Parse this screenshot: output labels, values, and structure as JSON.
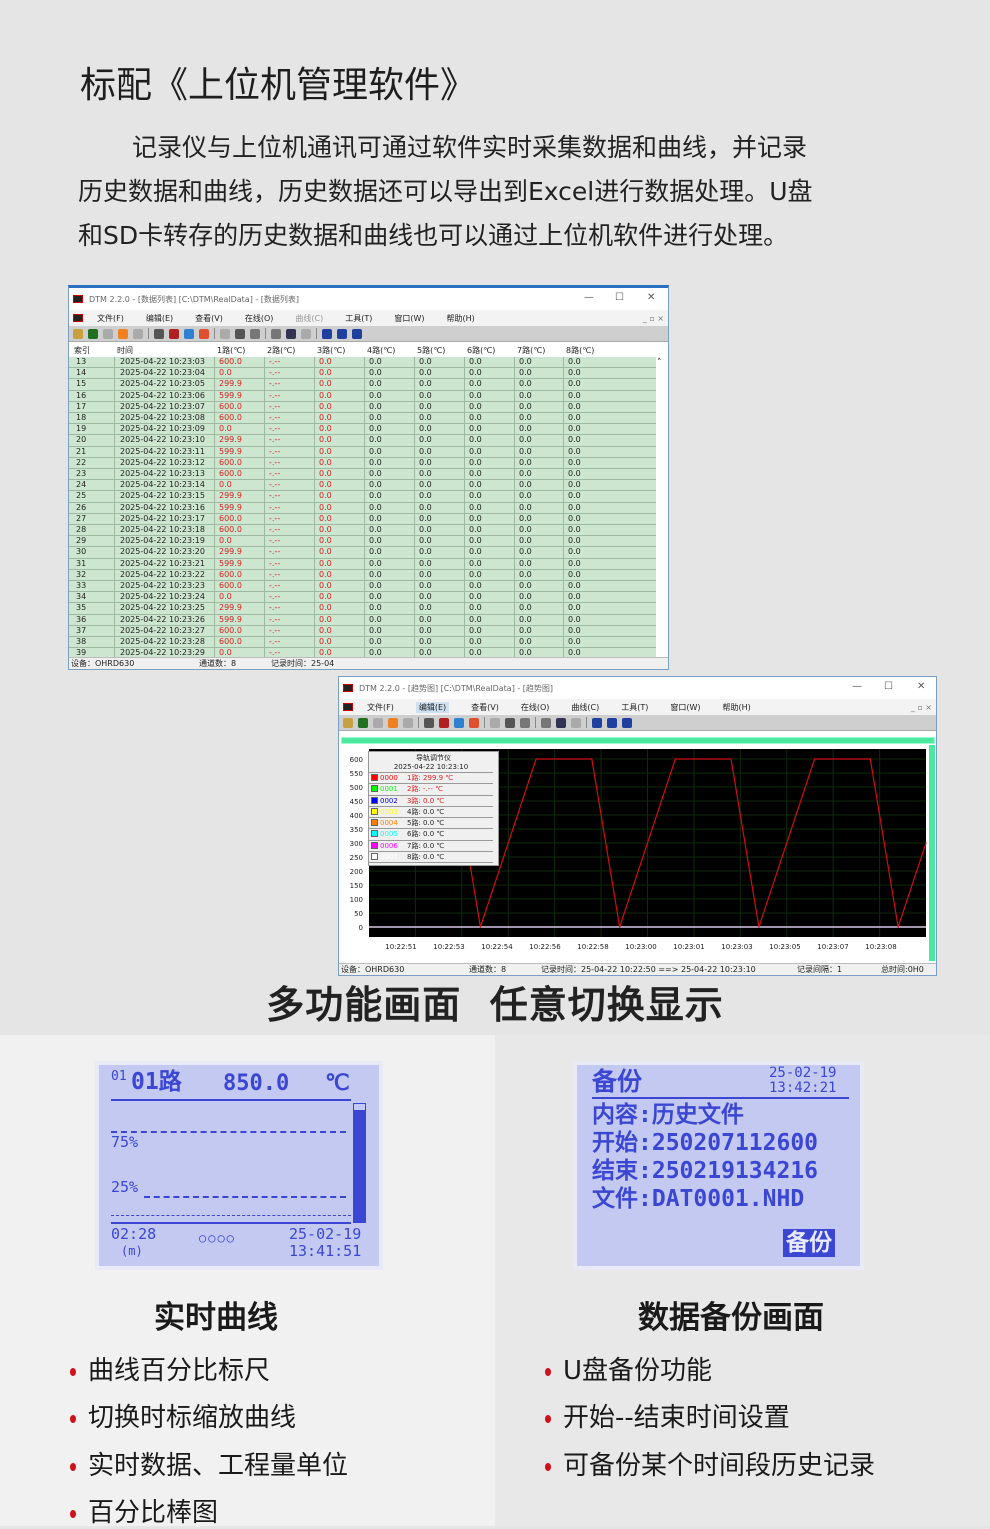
{
  "header": {
    "title": "标配《上位机管理软件》",
    "paragraph": [
      "记录仪与上位机通讯可通过软件实时采集数据和曲线，并记录",
      "历史数据和曲线，历史数据还可以导出到Excel进行数据处理。U盘",
      "和SD卡转存的历史数据和曲线也可以通过上位机软件进行处理。"
    ]
  },
  "menu": [
    "文件(F)",
    "编辑(E)",
    "查看(V)",
    "在线(O)",
    "曲线(C)",
    "工具(T)",
    "窗口(W)",
    "帮助(H)"
  ],
  "window_table": {
    "title": "DTM 2.2.0 - [数据列表] [C:\\DTM\\RealData] - [数据列表]",
    "columns": [
      "索引",
      "时间",
      "1路(℃)",
      "2路(℃)",
      "3路(℃)",
      "4路(℃)",
      "5路(℃)",
      "6路(℃)",
      "7路(℃)",
      "8路(℃)"
    ],
    "rows": [
      [
        "13",
        "2025-04-22 10:23:03",
        "600.0"
      ],
      [
        "14",
        "2025-04-22 10:23:04",
        "0.0"
      ],
      [
        "15",
        "2025-04-22 10:23:05",
        "299.9"
      ],
      [
        "16",
        "2025-04-22 10:23:06",
        "599.9"
      ],
      [
        "17",
        "2025-04-22 10:23:07",
        "600.0"
      ],
      [
        "18",
        "2025-04-22 10:23:08",
        "600.0"
      ],
      [
        "19",
        "2025-04-22 10:23:09",
        "0.0"
      ],
      [
        "20",
        "2025-04-22 10:23:10",
        "299.9"
      ],
      [
        "21",
        "2025-04-22 10:23:11",
        "599.9"
      ],
      [
        "22",
        "2025-04-22 10:23:12",
        "600.0"
      ],
      [
        "23",
        "2025-04-22 10:23:13",
        "600.0"
      ],
      [
        "24",
        "2025-04-22 10:23:14",
        "0.0"
      ],
      [
        "25",
        "2025-04-22 10:23:15",
        "299.9"
      ],
      [
        "26",
        "2025-04-22 10:23:16",
        "599.9"
      ],
      [
        "27",
        "2025-04-22 10:23:17",
        "600.0"
      ],
      [
        "28",
        "2025-04-22 10:23:18",
        "600.0"
      ],
      [
        "29",
        "2025-04-22 10:23:19",
        "0.0"
      ],
      [
        "30",
        "2025-04-22 10:23:20",
        "299.9"
      ],
      [
        "31",
        "2025-04-22 10:23:21",
        "599.9"
      ],
      [
        "32",
        "2025-04-22 10:23:22",
        "600.0"
      ],
      [
        "33",
        "2025-04-22 10:23:23",
        "600.0"
      ],
      [
        "34",
        "2025-04-22 10:23:24",
        "0.0"
      ],
      [
        "35",
        "2025-04-22 10:23:25",
        "299.9"
      ],
      [
        "36",
        "2025-04-22 10:23:26",
        "599.9"
      ],
      [
        "37",
        "2025-04-22 10:23:27",
        "600.0"
      ],
      [
        "38",
        "2025-04-22 10:23:28",
        "600.0"
      ],
      [
        "39",
        "2025-04-22 10:23:29",
        "0.0"
      ]
    ],
    "col2_value": "-.--",
    "other_value": "0.0",
    "status": {
      "device": "设备：OHRD630",
      "channels": "通道数：8",
      "record_time": "记录时间：25-04"
    }
  },
  "window_chart": {
    "title": "DTM 2.2.0 - [趋势图] [C:\\DTM\\RealData] - [趋势图]",
    "legend": {
      "title": "导轨调节仪",
      "time": "2025-04-22 10:23:10",
      "items": [
        {
          "id": "0000",
          "label": "1路: 299.9 ℃",
          "color": "#ff0000",
          "text_color": "#e02020"
        },
        {
          "id": "0001",
          "label": "2路: -.-- ℃",
          "color": "#00ff00",
          "text_color": "#e02020"
        },
        {
          "id": "0002",
          "label": "3路: 0.0 ℃",
          "color": "#0000ff",
          "text_color": "#e02020"
        },
        {
          "id": "0003",
          "label": "4路: 0.0 ℃",
          "color": "#ffff00",
          "text_color": "#222"
        },
        {
          "id": "0004",
          "label": "5路: 0.0 ℃",
          "color": "#ff8000",
          "text_color": "#222"
        },
        {
          "id": "0005",
          "label": "6路: 0.0 ℃",
          "color": "#00ffff",
          "text_color": "#222"
        },
        {
          "id": "0006",
          "label": "7路: 0.0 ℃",
          "color": "#ff00ff",
          "text_color": "#222"
        },
        {
          "id": "0007",
          "label": "8路: 0.0 ℃",
          "color": "#ffffff",
          "text_color": "#222"
        }
      ]
    },
    "status": {
      "device": "设备：OHRD630",
      "channels": "通道数：8",
      "record_time": "记录时间：25-04-22 10:22:50 ==> 25-04-22 10:23:10",
      "interval": "记录间隔：1",
      "total": "总时间:0H0"
    }
  },
  "chart_data": {
    "type": "line",
    "x": [
      "10:22:50",
      "10:22:51",
      "10:22:52",
      "10:22:53",
      "10:22:54",
      "10:22:55",
      "10:22:56",
      "10:22:57",
      "10:22:58",
      "10:22:59",
      "10:23:00",
      "10:23:01",
      "10:23:02",
      "10:23:03",
      "10:23:04",
      "10:23:05",
      "10:23:06",
      "10:23:07",
      "10:23:08",
      "10:23:09",
      "10:23:10"
    ],
    "series": [
      {
        "name": "0000",
        "color": "#d01010",
        "values": [
          299.9,
          599.9,
          600,
          600,
          0,
          299.9,
          599.9,
          600,
          600,
          0,
          299.9,
          599.9,
          600,
          600,
          0,
          299.9,
          599.9,
          600,
          600,
          0,
          299.9
        ]
      }
    ],
    "ylim": [
      0,
      600
    ],
    "yticks": [
      "0",
      "50",
      "100",
      "150",
      "200",
      "250",
      "300",
      "350",
      "400",
      "450",
      "500",
      "550",
      "600"
    ],
    "xticks": [
      "10:22:51",
      "10:22:53",
      "10:22:54",
      "10:22:56",
      "10:22:58",
      "10:23:00",
      "10:23:01",
      "10:23:03",
      "10:23:05",
      "10:23:07",
      "10:23:08"
    ],
    "background": "#000000",
    "grid": true
  },
  "section_title": "多功能画面  任意切换显示",
  "lcd_curve": {
    "ch_small": "01",
    "channel": "01路",
    "value": "850.0",
    "unit": "℃",
    "p75": "75%",
    "p25": "25%",
    "span": "02:28",
    "span_unit": "(m)",
    "dots": "○○○○",
    "date": "25-02-19",
    "time": "13:41:51",
    "bar_level": 0.95
  },
  "lcd_backup": {
    "title": "备份",
    "date": "25-02-19",
    "time": "13:42:21",
    "content": "内容:历史文件",
    "start": "开始:250207112600",
    "end": "结束:250219134216",
    "file": "文件:DAT0001.NHD",
    "button": "备份"
  },
  "left": {
    "title": "实时曲线",
    "bullets": [
      "曲线百分比标尺",
      "切换时标缩放曲线",
      "实时数据、工程量单位",
      "百分比棒图"
    ]
  },
  "right": {
    "title": "数据备份画面",
    "bullets": [
      "U盘备份功能",
      "开始--结束时间设置",
      "可备份某个时间段历史记录"
    ]
  }
}
